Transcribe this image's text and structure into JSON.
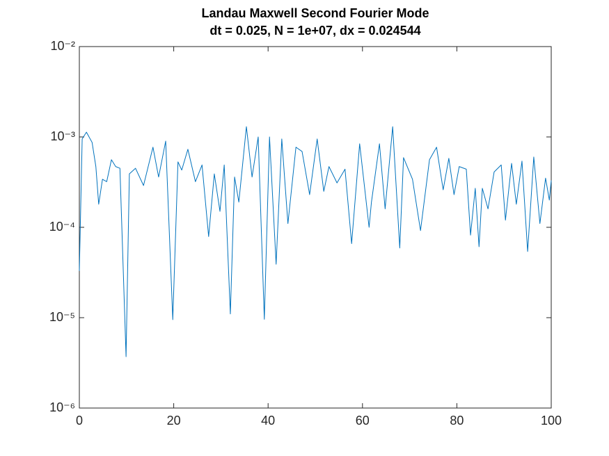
{
  "chart_data": {
    "type": "line",
    "title": "Landau Maxwell Second Fourier Mode",
    "subtitle": "dt = 0.025, N = 1e+07, dx = 0.024544",
    "yscale": "log",
    "xlim": [
      0,
      100
    ],
    "xticks": [
      0,
      20,
      40,
      60,
      80,
      100
    ],
    "ylim": [
      1e-06,
      0.01
    ],
    "yticks": [
      {
        "value": 1e-06,
        "label": "10⁻⁶"
      },
      {
        "value": 1e-05,
        "label": "10⁻⁵"
      },
      {
        "value": 0.0001,
        "label": "10⁻⁴"
      },
      {
        "value": 0.001,
        "label": "10⁻³"
      },
      {
        "value": 0.01,
        "label": "10⁻²"
      }
    ],
    "series": [
      {
        "color": "#0072bd",
        "x": [
          0,
          0.6,
          1.5,
          2.7,
          3.5,
          4.1,
          4.9,
          5.8,
          6.8,
          7.7,
          8.6,
          9.9,
          10.6,
          11.9,
          13.6,
          15.6,
          16.8,
          18.3,
          19.8,
          20.9,
          21.7,
          23.0,
          24.6,
          26.0,
          27.4,
          28.6,
          29.8,
          30.7,
          32.0,
          32.9,
          33.8,
          35.4,
          36.6,
          37.9,
          39.2,
          40.3,
          41.7,
          42.9,
          44.2,
          45.9,
          47.2,
          48.8,
          50.4,
          51.8,
          52.9,
          54.6,
          56.3,
          57.7,
          59.4,
          61.4,
          61.9,
          63.6,
          64.8,
          66.4,
          67.9,
          68.7,
          70.6,
          72.3,
          74.2,
          75.7,
          77.1,
          78.3,
          79.4,
          80.5,
          82.0,
          82.9,
          83.9,
          84.7,
          85.4,
          86.6,
          87.9,
          89.4,
          90.3,
          91.6,
          92.6,
          93.8,
          95.0,
          96.3,
          97.6,
          98.8,
          99.6,
          100
        ],
        "values": [
          3.3e-05,
          0.00095,
          0.00113,
          0.00087,
          0.00047,
          0.00018,
          0.00034,
          0.00032,
          0.00056,
          0.00047,
          0.00045,
          3.7e-06,
          0.00039,
          0.00045,
          0.00029,
          0.00077,
          0.00036,
          0.0009,
          9.5e-06,
          0.00053,
          0.00043,
          0.00073,
          0.00032,
          0.00049,
          7.9e-05,
          0.00039,
          0.00015,
          0.00049,
          1.1e-05,
          0.00036,
          0.00019,
          0.0013,
          0.00036,
          0.001,
          9.6e-06,
          0.001,
          3.9e-05,
          0.00095,
          0.00011,
          0.00077,
          0.00069,
          0.00023,
          0.00095,
          0.00025,
          0.00047,
          0.00031,
          0.00044,
          6.6e-05,
          0.00084,
          0.0001,
          0.00019,
          0.00084,
          0.00016,
          0.0013,
          5.9e-05,
          0.00059,
          0.00034,
          9.2e-05,
          0.00056,
          0.00077,
          0.00026,
          0.00058,
          0.00023,
          0.00047,
          0.00044,
          8.2e-05,
          0.00027,
          6.1e-05,
          0.00027,
          0.00016,
          0.00041,
          0.00049,
          0.00012,
          0.00051,
          0.00018,
          0.00054,
          5.4e-05,
          0.0006,
          0.00011,
          0.00035,
          0.0002,
          0.00033
        ]
      }
    ]
  }
}
